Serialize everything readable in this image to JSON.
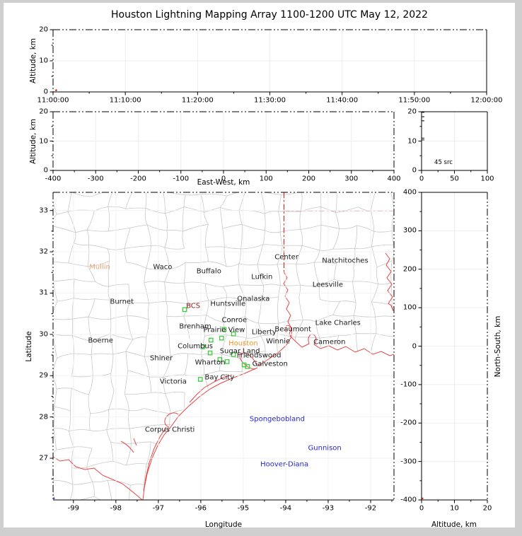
{
  "title": "Houston Lightning Mapping Array 1100-1200 UTC May 12, 2022",
  "colors": {
    "figure_bg": "#ffffff",
    "window_frame": "#cfcfcf",
    "frame_line": "#000000",
    "gridline": "#ededed",
    "map_gridline": "#f2f2f2",
    "county_line": "#c9c9c9",
    "state_border_red": "#dd2222",
    "coastline_red": "#e84545",
    "station_green": "#3ecc3e",
    "source_red": "#cc2200",
    "source_purple": "#6633cc"
  },
  "chart_data": [
    {
      "id": "time_height",
      "type": "scatter",
      "panel": "top: altitude vs time",
      "ylabel": "Altitude, km",
      "ylim": [
        0,
        20
      ],
      "yticks": [
        "0",
        "10",
        "20"
      ],
      "xticks": [
        "11:00:00",
        "11:10:00",
        "11:20:00",
        "11:30:00",
        "11:40:00",
        "11:50:00",
        "12:00:00"
      ],
      "points": [
        {
          "x_frac": 0.004,
          "alt_km": 0.3,
          "color": "#cc2200"
        }
      ]
    },
    {
      "id": "ew_height",
      "type": "scatter",
      "panel": "middle-left: altitude vs east-west distance",
      "xlabel": "East-West, km",
      "xlim": [
        -400,
        400
      ],
      "xticks": [
        "-400",
        "-300",
        "-200",
        "-100",
        "0",
        "100",
        "200",
        "300",
        "400"
      ],
      "ylabel": "Altitude, km",
      "ylim": [
        0,
        20
      ],
      "yticks": [
        "0",
        "10",
        "20"
      ],
      "points": []
    },
    {
      "id": "src_histogram",
      "type": "line",
      "panel": "middle-right: source count histogram vs altitude",
      "annotation": "45 src",
      "xlim": [
        0,
        100
      ],
      "xticks": [
        "0",
        "50",
        "100"
      ],
      "ylim": [
        0,
        20
      ],
      "yticks": [
        "0",
        "10",
        "20"
      ],
      "profile_marks_alt_km": [
        19.8,
        18.3,
        16.9,
        11.0,
        10.4
      ]
    },
    {
      "id": "plan_view",
      "type": "map",
      "panel": "main: plan view latitude vs longitude",
      "xlabel": "Longitude",
      "ylabel": "Latitude",
      "xlim": [
        -99.48,
        -91.45
      ],
      "ylim": [
        25.99,
        33.44
      ],
      "xticks": [
        "-99",
        "-98",
        "-97",
        "-96",
        "-95",
        "-94",
        "-93",
        "-92"
      ],
      "yticks": [
        "33",
        "32",
        "31",
        "30",
        "29",
        "28",
        "27"
      ],
      "cities": [
        {
          "name": "Mullin",
          "lon": -98.38,
          "lat": 31.63,
          "color": "#f2a06e"
        },
        {
          "name": "Waco",
          "lon": -96.9,
          "lat": 31.63,
          "color": "#1a1a1a"
        },
        {
          "name": "Buffalo",
          "lon": -95.81,
          "lat": 31.52,
          "color": "#1a1a1a"
        },
        {
          "name": "Lufkin",
          "lon": -94.56,
          "lat": 31.38,
          "color": "#1a1a1a"
        },
        {
          "name": "Center",
          "lon": -93.98,
          "lat": 31.86,
          "color": "#1a1a1a"
        },
        {
          "name": "Natchitoches",
          "lon": -92.6,
          "lat": 31.78,
          "color": "#1a1a1a"
        },
        {
          "name": "Leesville",
          "lon": -93.01,
          "lat": 31.19,
          "color": "#1a1a1a"
        },
        {
          "name": "Burnet",
          "lon": -97.86,
          "lat": 30.78,
          "color": "#1a1a1a"
        },
        {
          "name": "BCS",
          "lon": -96.18,
          "lat": 30.68,
          "color": "#8b1f1f"
        },
        {
          "name": "Huntsville",
          "lon": -95.36,
          "lat": 30.73,
          "color": "#1a1a1a"
        },
        {
          "name": "Onalaska",
          "lon": -94.76,
          "lat": 30.85,
          "color": "#1a1a1a"
        },
        {
          "name": "Conroe",
          "lon": -95.21,
          "lat": 30.34,
          "color": "#1a1a1a"
        },
        {
          "name": "Brenham",
          "lon": -96.13,
          "lat": 30.18,
          "color": "#1a1a1a"
        },
        {
          "name": "Prairie View",
          "lon": -95.45,
          "lat": 30.1,
          "color": "#1a1a1a"
        },
        {
          "name": "Liberty",
          "lon": -94.51,
          "lat": 30.05,
          "color": "#1a1a1a"
        },
        {
          "name": "Beaumont",
          "lon": -93.83,
          "lat": 30.12,
          "color": "#1a1a1a"
        },
        {
          "name": "Lake Charles",
          "lon": -92.77,
          "lat": 30.27,
          "color": "#1a1a1a"
        },
        {
          "name": "Boerne",
          "lon": -98.36,
          "lat": 29.84,
          "color": "#1a1a1a"
        },
        {
          "name": "Columbus",
          "lon": -96.13,
          "lat": 29.71,
          "color": "#1a1a1a"
        },
        {
          "name": "Houston",
          "lon": -95.0,
          "lat": 29.77,
          "color": "#ff9124"
        },
        {
          "name": "Winnie",
          "lon": -94.18,
          "lat": 29.82,
          "color": "#1a1a1a"
        },
        {
          "name": "Cameron",
          "lon": -92.97,
          "lat": 29.81,
          "color": "#1a1a1a"
        },
        {
          "name": "Sugar Land",
          "lon": -95.08,
          "lat": 29.58,
          "color": "#1a1a1a"
        },
        {
          "name": "Friendswood",
          "lon": -94.63,
          "lat": 29.48,
          "color": "#1a1a1a"
        },
        {
          "name": "Shiner",
          "lon": -96.93,
          "lat": 29.41,
          "color": "#1a1a1a"
        },
        {
          "name": "Wharton",
          "lon": -95.78,
          "lat": 29.31,
          "color": "#1a1a1a"
        },
        {
          "name": "Galveston",
          "lon": -94.37,
          "lat": 29.28,
          "color": "#1a1a1a"
        },
        {
          "name": "Bay City",
          "lon": -95.56,
          "lat": 28.95,
          "color": "#1a1a1a"
        },
        {
          "name": "Victoria",
          "lon": -96.65,
          "lat": 28.85,
          "color": "#1a1a1a"
        },
        {
          "name": "Corpus Christi",
          "lon": -96.73,
          "lat": 27.69,
          "color": "#1a1a1a"
        },
        {
          "name": "Spongebobland",
          "lon": -94.2,
          "lat": 27.94,
          "color": "#2626cc"
        },
        {
          "name": "Gunnison",
          "lon": -93.08,
          "lat": 27.24,
          "color": "#2626cc"
        },
        {
          "name": "Hoover-Diana",
          "lon": -94.03,
          "lat": 26.85,
          "color": "#2626cc"
        }
      ],
      "stations": [
        {
          "lon": -96.38,
          "lat": 30.6
        },
        {
          "lon": -95.45,
          "lat": 30.12
        },
        {
          "lon": -95.23,
          "lat": 30.01
        },
        {
          "lon": -95.51,
          "lat": 29.91
        },
        {
          "lon": -95.76,
          "lat": 29.86
        },
        {
          "lon": -95.95,
          "lat": 29.7
        },
        {
          "lon": -95.78,
          "lat": 29.55
        },
        {
          "lon": -95.23,
          "lat": 29.51
        },
        {
          "lon": -95.55,
          "lat": 29.39
        },
        {
          "lon": -95.38,
          "lat": 29.34
        },
        {
          "lon": -94.98,
          "lat": 29.26
        },
        {
          "lon": -94.9,
          "lat": 29.22
        },
        {
          "lon": -96.01,
          "lat": 28.91
        }
      ],
      "points": [
        {
          "lon": -99.46,
          "lat": 26.03,
          "color": "#6633cc"
        }
      ]
    },
    {
      "id": "ns_height",
      "type": "scatter",
      "panel": "right: north-south distance vs altitude",
      "xlabel": "Altitude, km",
      "xlim": [
        0,
        20
      ],
      "xticks": [
        "0",
        "10",
        "20"
      ],
      "ylabel": "North-South, km",
      "ylim": [
        -400,
        400
      ],
      "yticks": [
        "400",
        "300",
        "200",
        "100",
        "0",
        "-100",
        "-200",
        "-300",
        "-400"
      ],
      "points": [
        {
          "alt_km": 0.3,
          "ns_km": -396,
          "color": "#cc2200"
        }
      ]
    }
  ]
}
